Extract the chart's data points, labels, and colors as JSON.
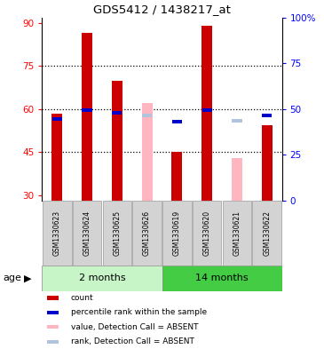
{
  "title": "GDS5412 / 1438217_at",
  "samples": [
    "GSM1330623",
    "GSM1330624",
    "GSM1330625",
    "GSM1330626",
    "GSM1330619",
    "GSM1330620",
    "GSM1330621",
    "GSM1330622"
  ],
  "present": [
    true,
    true,
    true,
    false,
    true,
    true,
    false,
    true
  ],
  "count_values": [
    58.5,
    86.5,
    70.0,
    null,
    45.0,
    89.0,
    null,
    54.5
  ],
  "rank_values": [
    44.5,
    49.5,
    48.0,
    null,
    43.0,
    49.5,
    null,
    46.5
  ],
  "absent_value_values": [
    null,
    null,
    null,
    62.0,
    null,
    null,
    43.0,
    null
  ],
  "absent_rank_values": [
    null,
    null,
    null,
    46.5,
    null,
    null,
    43.5,
    null
  ],
  "ylim_left": [
    28,
    92
  ],
  "yticks_left": [
    30,
    45,
    60,
    75,
    90
  ],
  "yticks_right": [
    0,
    25,
    50,
    75,
    100
  ],
  "ytick_labels_right": [
    "0",
    "25",
    "50",
    "75",
    "100%"
  ],
  "grid_yticks": [
    45,
    60,
    75
  ],
  "bar_width": 0.35,
  "count_color": "#cc0000",
  "rank_color": "#0000cc",
  "absent_value_color": "#ffb6c1",
  "absent_rank_color": "#b0c4de",
  "group1_label": "2 months",
  "group2_label": "14 months",
  "group1_color": "#c8f5c8",
  "group2_color": "#44cc44",
  "sample_box_color": "#d3d3d3",
  "age_label": "age",
  "legend_labels": [
    "count",
    "percentile rank within the sample",
    "value, Detection Call = ABSENT",
    "rank, Detection Call = ABSENT"
  ],
  "legend_colors": [
    "#cc0000",
    "#0000cc",
    "#ffb6c1",
    "#b0c4de"
  ]
}
